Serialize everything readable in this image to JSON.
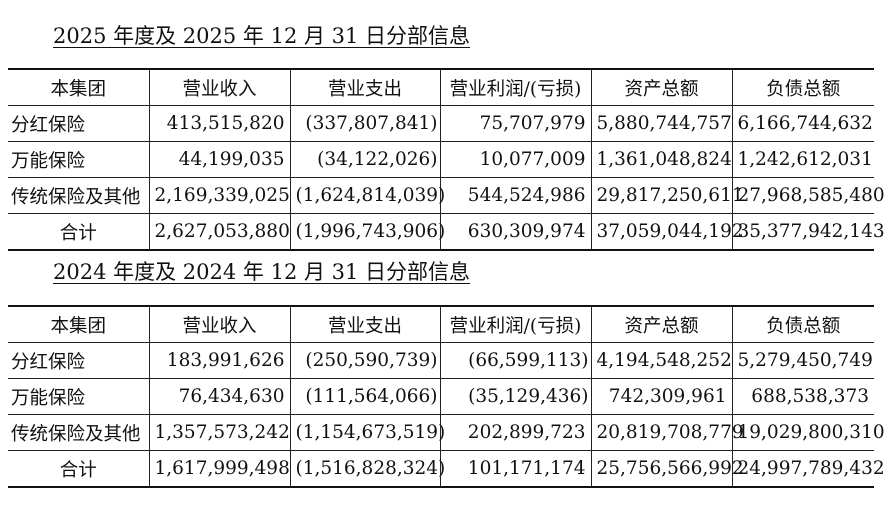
{
  "sections": [
    {
      "title": "2025 年度及 2025 年 12 月 31 日分部信息",
      "headers": [
        "本集团",
        "营业收入",
        "营业支出",
        "营业利润/(亏损)",
        "资产总额",
        "负债总额"
      ],
      "rows": [
        [
          "分红保险",
          "413,515,820",
          "(337,807,841)",
          "75,707,979",
          "5,880,744,757",
          "6,166,744,632"
        ],
        [
          "万能保险",
          "44,199,035",
          "(34,122,026)",
          "10,077,009",
          "1,361,048,824",
          "1,242,612,031"
        ],
        [
          "传统保险及其他",
          "2,169,339,025",
          "(1,624,814,039)",
          "544,524,986",
          "29,817,250,611",
          "27,968,585,480"
        ],
        [
          "合计",
          "2,627,053,880",
          "(1,996,743,906)",
          "630,309,974",
          "37,059,044,192",
          "35,377,942,143"
        ]
      ]
    },
    {
      "title": "2024 年度及 2024 年 12 月 31 日分部信息",
      "headers": [
        "本集团",
        "营业收入",
        "营业支出",
        "营业利润/(亏损)",
        "资产总额",
        "负债总额"
      ],
      "rows": [
        [
          "分红保险",
          "183,991,626",
          "(250,590,739)",
          "(66,599,113)",
          "4,194,548,252",
          "5,279,450,749"
        ],
        [
          "万能保险",
          "76,434,630",
          "(111,564,066)",
          "(35,129,436)",
          "742,309,961",
          "688,538,373"
        ],
        [
          "传统保险及其他",
          "1,357,573,242",
          "(1,154,673,519)",
          "202,899,723",
          "20,819,708,779",
          "19,029,800,310"
        ],
        [
          "合计",
          "1,617,999,498",
          "(1,516,828,324)",
          "101,171,174",
          "25,756,566,992",
          "24,997,789,432"
        ]
      ]
    }
  ]
}
